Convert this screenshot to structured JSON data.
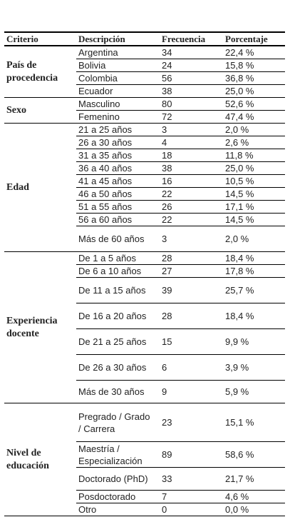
{
  "table": {
    "headers": [
      "Criterio",
      "Descripción",
      "Frecuencia",
      "Porcentaje"
    ],
    "groups": [
      {
        "label": "País de procedencia",
        "rows": [
          [
            "Argentina",
            34,
            "22,4 %"
          ],
          [
            "Bolivia",
            24,
            "15,8 %"
          ],
          [
            "Colombia",
            56,
            "36,8 %"
          ],
          [
            "Ecuador",
            38,
            "25,0 %"
          ]
        ]
      },
      {
        "label": "Sexo",
        "rows": [
          [
            "Masculino",
            80,
            "52,6 %"
          ],
          [
            "Femenino",
            72,
            "47,4 %"
          ]
        ]
      },
      {
        "label": "Edad",
        "rows": [
          [
            "21 a 25 años",
            3,
            "2,0 %"
          ],
          [
            "26 a 30 años",
            4,
            "2,6 %"
          ],
          [
            "31 a 35 años",
            18,
            "11,8 %"
          ],
          [
            "36 a 40 años",
            38,
            "25,0 %"
          ],
          [
            "41 a 45 años",
            16,
            "10,5 %"
          ],
          [
            "46 a 50 años",
            22,
            "14,5 %"
          ],
          [
            "51 a 55 años",
            26,
            "17,1 %"
          ],
          [
            "56 a 60 años",
            22,
            "14,5 %"
          ],
          [
            "Más de 60 años",
            3,
            "2,0 %"
          ]
        ]
      },
      {
        "label": "Experiencia docente",
        "rows": [
          [
            "De 1 a 5 años",
            28,
            "18,4 %"
          ],
          [
            "De 6 a 10 años",
            27,
            "17,8 %"
          ],
          [
            "De 11 a 15 años",
            39,
            "25,7 %"
          ],
          [
            "De 16 a 20 años",
            28,
            "18,4 %"
          ],
          [
            "De 21 a 25 años",
            15,
            "9,9 %"
          ],
          [
            "De 26 a 30 años",
            6,
            "3,9 %"
          ],
          [
            "Más de 30 años",
            9,
            "5,9 %"
          ]
        ]
      },
      {
        "label": "Nivel de educación",
        "rows": [
          [
            "Pregrado / Grado / Carrera",
            23,
            "15,1 %"
          ],
          [
            "Maestría / Especialización",
            89,
            "58,6 %"
          ],
          [
            "Doctorado (PhD)",
            33,
            "21,7 %"
          ],
          [
            "Posdoctorado",
            7,
            "4,6 %"
          ],
          [
            "Otro",
            0,
            "0,0 %"
          ]
        ]
      }
    ]
  }
}
